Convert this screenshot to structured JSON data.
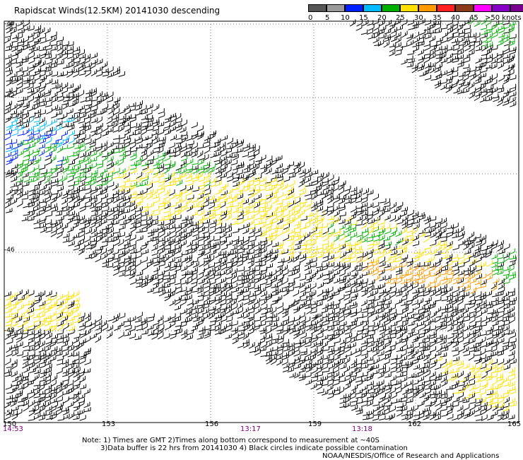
{
  "title": "Rapidscat Winds(12.5KM) 20141030 descending",
  "colorbar": {
    "colors": [
      "#555555",
      "#9a9a9a",
      "#0020ff",
      "#00bcff",
      "#00b000",
      "#ffe000",
      "#ff9a00",
      "#ff2020",
      "#8b3a1a",
      "#ff00ff",
      "#8800c8",
      "#7a0090"
    ],
    "labels": [
      "0",
      "5",
      "10",
      "15",
      "20",
      "25",
      "30",
      "35",
      "40",
      "45",
      ">50 knots"
    ]
  },
  "lon_labels": [
    "150",
    "153",
    "156",
    "159",
    "162",
    "165"
  ],
  "lat_labels": [
    "-40",
    "-42",
    "-44",
    "-46",
    "-48",
    "-50"
  ],
  "times": [
    "14:53",
    "13:17",
    "13:18"
  ],
  "notes": {
    "line1": "Note: 1) Times are GMT 2)Times along bottom correspond to measurement at ~40S",
    "line2": "3)Data buffer is 22 hrs from 20141030 4) Black circles indicate possible contamination",
    "line3": "NOAA/NESDIS/Office of Research and Applications"
  }
}
